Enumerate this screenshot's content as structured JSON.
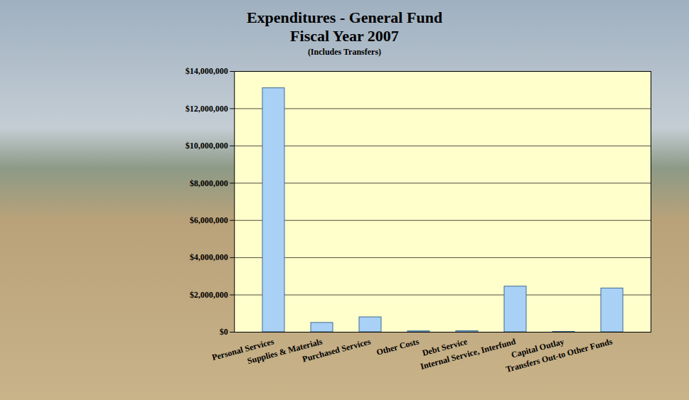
{
  "chart_data": {
    "type": "bar",
    "title": "Expenditures - General Fund",
    "subtitle": "Fiscal Year 2007",
    "annotation": "(Includes Transfers)",
    "categories": [
      "Personal Services",
      "Supplies & Materials",
      "Purchased Services",
      "Other Costs",
      "Debt Service",
      "Internal Service, Interfund",
      "Capital Outlay",
      "Transfers Out-to Other Funds"
    ],
    "values": [
      13100000,
      500000,
      800000,
      50000,
      60000,
      2450000,
      20000,
      2350000
    ],
    "color": "#a9d1f5",
    "ylim": [
      0,
      14000000
    ],
    "yticks": [
      {
        "value": 0,
        "label": "$0"
      },
      {
        "value": 2000000,
        "label": "$2,000,000"
      },
      {
        "value": 4000000,
        "label": "$4,000,000"
      },
      {
        "value": 6000000,
        "label": "$6,000,000"
      },
      {
        "value": 8000000,
        "label": "$8,000,000"
      },
      {
        "value": 10000000,
        "label": "$10,000,000"
      },
      {
        "value": 12000000,
        "label": "$12,000,000"
      },
      {
        "value": 14000000,
        "label": "$14,000,000"
      }
    ],
    "grid": true
  }
}
